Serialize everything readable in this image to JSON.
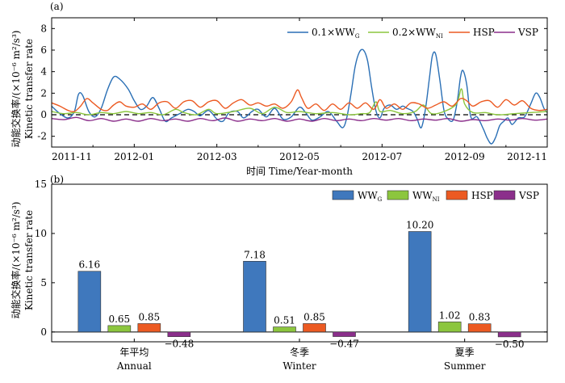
{
  "chart_data": [
    {
      "panel": "(a)",
      "type": "line",
      "xlabel": "时间 Time/Year-month",
      "ylabel_cn": "动能交换率/(×10⁻⁶ m²/s³)",
      "ylabel_en": "Kinetic transfer rate",
      "xlim": [
        0,
        12
      ],
      "ylim": [
        -3,
        9
      ],
      "yticks": [
        -2,
        0,
        2,
        4,
        6,
        8
      ],
      "xticks": [
        {
          "x": 0,
          "label": "2011-11"
        },
        {
          "x": 2,
          "label": "2012-01"
        },
        {
          "x": 4,
          "label": "2012-03"
        },
        {
          "x": 6,
          "label": "2012-05"
        },
        {
          "x": 8,
          "label": "2012-07"
        },
        {
          "x": 10,
          "label": "2012-09"
        },
        {
          "x": 12,
          "label": "2012-11"
        }
      ],
      "reference_line": {
        "y": 0,
        "style": "dashed",
        "color": "#000000"
      },
      "legend_position": "top-right",
      "series": [
        {
          "name": "0.1×WW_G",
          "legend_main": "0.1×WW",
          "legend_sub": "G",
          "color": "#2a6fb5",
          "points": [
            [
              0,
              0.8
            ],
            [
              0.2,
              0.1
            ],
            [
              0.4,
              -0.3
            ],
            [
              0.55,
              0.3
            ],
            [
              0.65,
              1.9
            ],
            [
              0.75,
              1.8
            ],
            [
              0.9,
              0.3
            ],
            [
              1.05,
              -0.2
            ],
            [
              1.2,
              0.6
            ],
            [
              1.35,
              2.3
            ],
            [
              1.5,
              3.5
            ],
            [
              1.65,
              3.3
            ],
            [
              1.85,
              2.4
            ],
            [
              2.0,
              1.3
            ],
            [
              2.15,
              0.5
            ],
            [
              2.3,
              0.8
            ],
            [
              2.45,
              1.6
            ],
            [
              2.6,
              0.6
            ],
            [
              2.75,
              -0.6
            ],
            [
              2.9,
              -0.3
            ],
            [
              3.1,
              0.1
            ],
            [
              3.3,
              0.5
            ],
            [
              3.45,
              0.3
            ],
            [
              3.6,
              -0.1
            ],
            [
              3.8,
              0.4
            ],
            [
              4.0,
              -0.4
            ],
            [
              4.15,
              -0.6
            ],
            [
              4.3,
              0.2
            ],
            [
              4.5,
              0.3
            ],
            [
              4.65,
              -0.3
            ],
            [
              4.85,
              0.3
            ],
            [
              5.0,
              0.5
            ],
            [
              5.2,
              -0.2
            ],
            [
              5.4,
              0.6
            ],
            [
              5.6,
              -0.4
            ],
            [
              5.8,
              -0.2
            ],
            [
              6.0,
              0.7
            ],
            [
              6.15,
              0.2
            ],
            [
              6.3,
              -0.5
            ],
            [
              6.5,
              -0.2
            ],
            [
              6.7,
              0.3
            ],
            [
              6.9,
              -0.6
            ],
            [
              7.05,
              -1.2
            ],
            [
              7.15,
              -0.2
            ],
            [
              7.25,
              2.0
            ],
            [
              7.35,
              4.5
            ],
            [
              7.45,
              5.8
            ],
            [
              7.55,
              6.0
            ],
            [
              7.65,
              5.0
            ],
            [
              7.75,
              2.5
            ],
            [
              7.85,
              0.4
            ],
            [
              7.95,
              -0.3
            ],
            [
              8.05,
              0.6
            ],
            [
              8.2,
              0.9
            ],
            [
              8.35,
              0.5
            ],
            [
              8.5,
              0.8
            ],
            [
              8.6,
              0.6
            ],
            [
              8.75,
              0.3
            ],
            [
              8.85,
              -0.4
            ],
            [
              8.95,
              -1.2
            ],
            [
              9.05,
              0.5
            ],
            [
              9.15,
              3.5
            ],
            [
              9.22,
              5.5
            ],
            [
              9.3,
              5.6
            ],
            [
              9.4,
              3.2
            ],
            [
              9.5,
              0.4
            ],
            [
              9.6,
              -0.4
            ],
            [
              9.72,
              -0.5
            ],
            [
              9.82,
              1.2
            ],
            [
              9.9,
              3.5
            ],
            [
              9.96,
              4.1
            ],
            [
              10.05,
              2.8
            ],
            [
              10.15,
              -0.2
            ],
            [
              10.3,
              -0.2
            ],
            [
              10.45,
              -1.3
            ],
            [
              10.55,
              -2.2
            ],
            [
              10.65,
              -2.7
            ],
            [
              10.75,
              -2.1
            ],
            [
              10.85,
              -1.0
            ],
            [
              10.95,
              -0.6
            ],
            [
              11.05,
              -0.3
            ],
            [
              11.15,
              -0.9
            ],
            [
              11.3,
              -0.3
            ],
            [
              11.45,
              -0.2
            ],
            [
              11.6,
              1.0
            ],
            [
              11.72,
              2.0
            ],
            [
              11.82,
              1.6
            ],
            [
              11.92,
              0.6
            ],
            [
              12.0,
              0.2
            ]
          ]
        },
        {
          "name": "0.2×WW_NI",
          "legend_main": "0.2×WW",
          "legend_sub": "NI",
          "color": "#8cc63e",
          "points": [
            [
              0,
              0.3
            ],
            [
              0.3,
              0.1
            ],
            [
              0.6,
              0.2
            ],
            [
              0.9,
              0.0
            ],
            [
              1.2,
              0.2
            ],
            [
              1.5,
              0.1
            ],
            [
              1.8,
              0.3
            ],
            [
              2.1,
              0.1
            ],
            [
              2.4,
              0.2
            ],
            [
              2.7,
              0.0
            ],
            [
              3.0,
              0.5
            ],
            [
              3.2,
              0.2
            ],
            [
              3.5,
              0.0
            ],
            [
              3.8,
              0.5
            ],
            [
              4.0,
              0.1
            ],
            [
              4.4,
              0.3
            ],
            [
              4.8,
              0.6
            ],
            [
              5.1,
              0.1
            ],
            [
              5.4,
              0.7
            ],
            [
              5.7,
              0.2
            ],
            [
              6.0,
              0.3
            ],
            [
              6.4,
              0.1
            ],
            [
              6.8,
              0.2
            ],
            [
              7.2,
              0.0
            ],
            [
              7.5,
              0.1
            ],
            [
              7.7,
              0.2
            ],
            [
              7.85,
              1.2
            ],
            [
              7.95,
              0.3
            ],
            [
              8.2,
              0.4
            ],
            [
              8.5,
              0.1
            ],
            [
              8.8,
              0.3
            ],
            [
              9.0,
              0.9
            ],
            [
              9.2,
              0.1
            ],
            [
              9.5,
              0.3
            ],
            [
              9.8,
              1.0
            ],
            [
              9.92,
              2.4
            ],
            [
              10.0,
              1.0
            ],
            [
              10.2,
              0.2
            ],
            [
              10.5,
              0.2
            ],
            [
              10.8,
              0.0
            ],
            [
              11.2,
              0.1
            ],
            [
              11.6,
              0.2
            ],
            [
              12.0,
              0.3
            ]
          ]
        },
        {
          "name": "HSP",
          "legend_main": "HSP",
          "legend_sub": "",
          "color": "#ec5a22",
          "points": [
            [
              0,
              1.1
            ],
            [
              0.2,
              0.8
            ],
            [
              0.4,
              0.4
            ],
            [
              0.55,
              0.3
            ],
            [
              0.7,
              0.8
            ],
            [
              0.85,
              1.5
            ],
            [
              1.0,
              1.1
            ],
            [
              1.2,
              0.5
            ],
            [
              1.35,
              0.4
            ],
            [
              1.5,
              0.9
            ],
            [
              1.65,
              1.2
            ],
            [
              1.8,
              0.8
            ],
            [
              2.0,
              0.7
            ],
            [
              2.2,
              1.0
            ],
            [
              2.4,
              0.5
            ],
            [
              2.6,
              1.1
            ],
            [
              2.8,
              1.2
            ],
            [
              3.0,
              0.6
            ],
            [
              3.2,
              1.2
            ],
            [
              3.4,
              1.3
            ],
            [
              3.6,
              0.7
            ],
            [
              3.8,
              1.2
            ],
            [
              4.0,
              1.3
            ],
            [
              4.2,
              0.6
            ],
            [
              4.4,
              1.1
            ],
            [
              4.6,
              1.4
            ],
            [
              4.8,
              0.9
            ],
            [
              5.0,
              1.1
            ],
            [
              5.2,
              0.8
            ],
            [
              5.4,
              1.0
            ],
            [
              5.6,
              0.6
            ],
            [
              5.8,
              1.2
            ],
            [
              5.95,
              2.3
            ],
            [
              6.05,
              1.6
            ],
            [
              6.2,
              0.6
            ],
            [
              6.4,
              1.0
            ],
            [
              6.6,
              0.4
            ],
            [
              6.8,
              1.0
            ],
            [
              7.0,
              0.5
            ],
            [
              7.2,
              1.1
            ],
            [
              7.4,
              0.6
            ],
            [
              7.6,
              1.1
            ],
            [
              7.8,
              0.5
            ],
            [
              7.95,
              1.4
            ],
            [
              8.1,
              0.6
            ],
            [
              8.3,
              1.0
            ],
            [
              8.5,
              0.5
            ],
            [
              8.7,
              1.1
            ],
            [
              8.9,
              1.0
            ],
            [
              9.1,
              0.6
            ],
            [
              9.3,
              0.9
            ],
            [
              9.5,
              1.2
            ],
            [
              9.7,
              0.8
            ],
            [
              9.9,
              1.5
            ],
            [
              10.05,
              1.3
            ],
            [
              10.2,
              0.8
            ],
            [
              10.4,
              1.2
            ],
            [
              10.6,
              1.3
            ],
            [
              10.8,
              0.7
            ],
            [
              11.0,
              1.4
            ],
            [
              11.2,
              0.9
            ],
            [
              11.4,
              1.3
            ],
            [
              11.6,
              0.6
            ],
            [
              11.8,
              0.4
            ],
            [
              12.0,
              0.5
            ]
          ]
        },
        {
          "name": "VSP",
          "legend_main": "VSP",
          "legend_sub": "",
          "color": "#8b2f8b",
          "points": [
            [
              0,
              -0.35
            ],
            [
              0.3,
              -0.45
            ],
            [
              0.6,
              -0.25
            ],
            [
              0.9,
              -0.55
            ],
            [
              1.2,
              -0.35
            ],
            [
              1.5,
              -0.6
            ],
            [
              1.8,
              -0.4
            ],
            [
              2.1,
              -0.6
            ],
            [
              2.4,
              -0.35
            ],
            [
              2.7,
              -0.55
            ],
            [
              3.0,
              -0.4
            ],
            [
              3.3,
              -0.6
            ],
            [
              3.6,
              -0.35
            ],
            [
              3.9,
              -0.55
            ],
            [
              4.2,
              -0.3
            ],
            [
              4.5,
              -0.6
            ],
            [
              4.8,
              -0.4
            ],
            [
              5.1,
              -0.55
            ],
            [
              5.4,
              -0.35
            ],
            [
              5.7,
              -0.6
            ],
            [
              6.0,
              -0.4
            ],
            [
              6.3,
              -0.6
            ],
            [
              6.6,
              -0.35
            ],
            [
              6.9,
              -0.55
            ],
            [
              7.2,
              -0.4
            ],
            [
              7.5,
              -0.55
            ],
            [
              7.8,
              -0.35
            ],
            [
              8.1,
              -0.5
            ],
            [
              8.4,
              -0.35
            ],
            [
              8.7,
              -0.55
            ],
            [
              9.0,
              -0.4
            ],
            [
              9.3,
              -0.5
            ],
            [
              9.6,
              -0.35
            ],
            [
              9.9,
              -0.6
            ],
            [
              10.2,
              -0.45
            ],
            [
              10.5,
              -0.55
            ],
            [
              10.8,
              -0.4
            ],
            [
              11.1,
              -0.5
            ],
            [
              11.4,
              -0.35
            ],
            [
              11.7,
              -0.5
            ],
            [
              12.0,
              -0.4
            ]
          ]
        }
      ]
    },
    {
      "panel": "(b)",
      "type": "bar",
      "ylabel_cn": "动能交换率/(×10⁻⁶ m²/s³)",
      "ylabel_en": "Kinetic transfer rate",
      "ylim": [
        -1,
        15
      ],
      "yticks": [
        0,
        5,
        10,
        15
      ],
      "categories": [
        {
          "cn": "年平均",
          "en": "Annual"
        },
        {
          "cn": "冬季",
          "en": "Winter"
        },
        {
          "cn": "夏季",
          "en": "Summer"
        }
      ],
      "legend_position": "top-right",
      "series": [
        {
          "name": "WW_G",
          "legend_main": "WW",
          "legend_sub": "G",
          "color": "#3f78bd",
          "values": [
            6.16,
            7.18,
            10.2
          ],
          "labels": [
            "6.16",
            "7.18",
            "10.20"
          ]
        },
        {
          "name": "WW_NI",
          "legend_main": "WW",
          "legend_sub": "NI",
          "color": "#8cc63e",
          "values": [
            0.65,
            0.51,
            1.02
          ],
          "labels": [
            "0.65",
            "0.51",
            "1.02"
          ]
        },
        {
          "name": "HSP",
          "legend_main": "HSP",
          "legend_sub": "",
          "color": "#ec5a22",
          "values": [
            0.85,
            0.85,
            0.83
          ],
          "labels": [
            "0.85",
            "0.85",
            "0.83"
          ]
        },
        {
          "name": "VSP",
          "legend_main": "VSP",
          "legend_sub": "",
          "color": "#8b2f8b",
          "values": [
            -0.48,
            -0.47,
            -0.5
          ],
          "labels": [
            "−0.48",
            "−0.47",
            "−0.50"
          ]
        }
      ]
    }
  ]
}
